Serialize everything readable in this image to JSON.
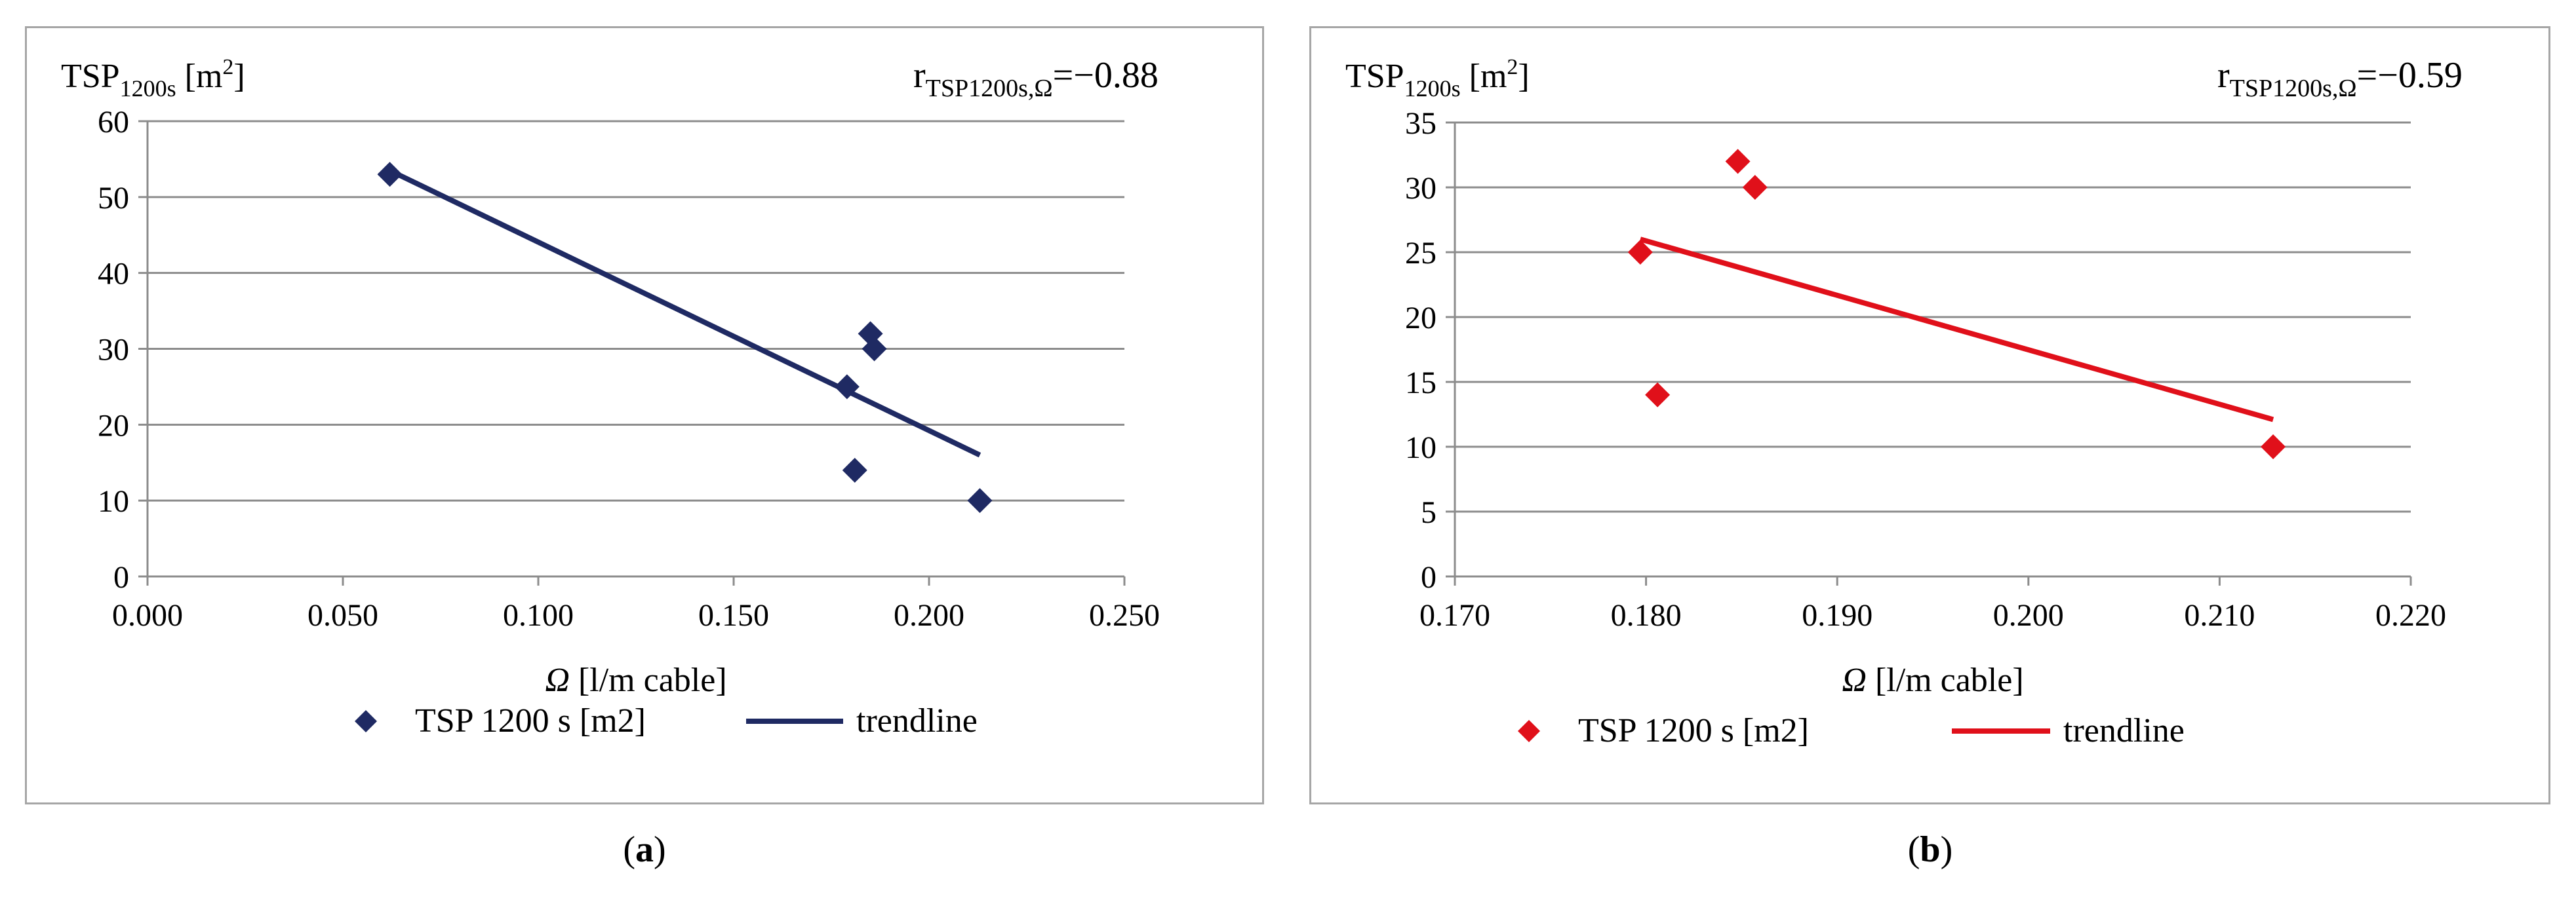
{
  "chart_data": [
    {
      "type": "scatter",
      "caption_letter": "a",
      "ylabel_main": "TSP",
      "ylabel_sub": "1200s",
      "ylabel_unit": " [m",
      "ylabel_sup": "2",
      "ylabel_close": "]",
      "xlabel_symbol": "Ω",
      "xlabel_unit": " [l/m cable]",
      "corr_main": "r",
      "corr_sub": "TSP1200s,Ω",
      "corr_value": "=−0.88",
      "xlim": [
        0.0,
        0.25
      ],
      "ylim": [
        0,
        60
      ],
      "xticks": [
        "0.000",
        "0.050",
        "0.100",
        "0.150",
        "0.200",
        "0.250"
      ],
      "yticks": [
        "0",
        "10",
        "20",
        "30",
        "40",
        "50",
        "60"
      ],
      "series": [
        {
          "name": "TSP 1200 s [m2]",
          "kind": "points",
          "color": "#1f2a63",
          "x": [
            0.062,
            0.179,
            0.181,
            0.185,
            0.186,
            0.213
          ],
          "y": [
            53,
            25,
            14,
            32,
            30,
            10
          ]
        },
        {
          "name": "trendline",
          "kind": "line",
          "color": "#1f2a63",
          "x": [
            0.062,
            0.213
          ],
          "y": [
            53.5,
            16
          ]
        }
      ],
      "grid": true,
      "legend": "bottom"
    },
    {
      "type": "scatter",
      "caption_letter": "b",
      "ylabel_main": "TSP",
      "ylabel_sub": "1200s",
      "ylabel_unit": " [m",
      "ylabel_sup": "2",
      "ylabel_close": "]",
      "xlabel_symbol": "Ω",
      "xlabel_unit": " [l/m cable]",
      "corr_main": "r",
      "corr_sub": "TSP1200s,Ω",
      "corr_value": "=−0.59",
      "xlim": [
        0.17,
        0.22
      ],
      "ylim": [
        0,
        35
      ],
      "xticks": [
        "0.170",
        "0.180",
        "0.190",
        "0.200",
        "0.210",
        "0.220"
      ],
      "yticks": [
        "0",
        "5",
        "10",
        "15",
        "20",
        "25",
        "30",
        "35"
      ],
      "series": [
        {
          "name": "TSP 1200 s [m2]",
          "kind": "points",
          "color": "#e0101a",
          "x": [
            0.1797,
            0.1806,
            0.1848,
            0.1857,
            0.2128
          ],
          "y": [
            25,
            14,
            32,
            30,
            10
          ]
        },
        {
          "name": "trendline",
          "kind": "line",
          "color": "#e0101a",
          "x": [
            0.1797,
            0.2128
          ],
          "y": [
            26,
            12.1
          ]
        }
      ],
      "grid": true,
      "legend": "bottom"
    }
  ]
}
